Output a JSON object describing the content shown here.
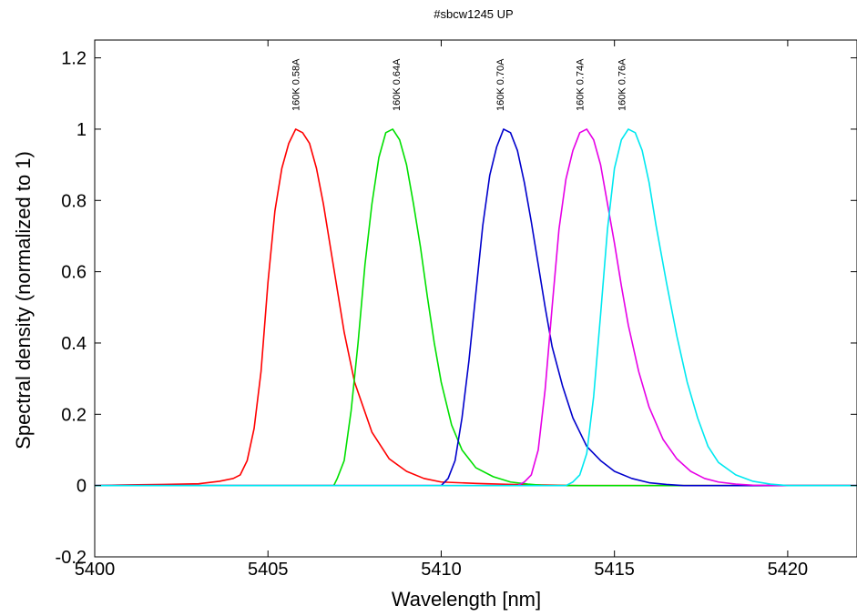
{
  "chart_data": {
    "type": "line",
    "title": "#sbcw1245 UP",
    "xlabel": "Wavelength [nm]",
    "ylabel": "Spectral density (normalized to 1)",
    "xlim": [
      5400,
      5422
    ],
    "ylim": [
      -0.2,
      1.25
    ],
    "xticks": [
      5400,
      5405,
      5410,
      5415,
      5420
    ],
    "xtick_labels": [
      "5400",
      "5405",
      "5410",
      "5415",
      "5420"
    ],
    "yticks": [
      -0.2,
      0,
      0.2,
      0.4,
      0.6,
      0.8,
      1,
      1.2
    ],
    "ytick_labels": [
      "-0.2",
      "0",
      "0.2",
      "0.4",
      "0.6",
      "0.8",
      "1",
      "1.2"
    ],
    "grid": false,
    "legend": "none",
    "series": [
      {
        "name": "160K 0.58A",
        "color": "#ff0000",
        "x": [
          5400,
          5401,
          5402,
          5403,
          5403.6,
          5404.0,
          5404.2,
          5404.4,
          5404.6,
          5404.8,
          5405.0,
          5405.2,
          5405.4,
          5405.6,
          5405.8,
          5406.0,
          5406.2,
          5406.4,
          5406.6,
          5406.8,
          5407.0,
          5407.2,
          5407.5,
          5408.0,
          5408.5,
          5409.0,
          5409.5,
          5410.0,
          5411.0,
          5412.0,
          5414.0,
          5417.0,
          5422.0
        ],
        "y": [
          0.0,
          0.002,
          0.003,
          0.005,
          0.012,
          0.02,
          0.03,
          0.07,
          0.16,
          0.32,
          0.57,
          0.77,
          0.89,
          0.96,
          1.0,
          0.99,
          0.96,
          0.89,
          0.79,
          0.67,
          0.55,
          0.43,
          0.29,
          0.15,
          0.075,
          0.04,
          0.02,
          0.01,
          0.006,
          0.003,
          0.0,
          0.0,
          0.0
        ]
      },
      {
        "name": "160K 0.64A",
        "color": "#00e000",
        "x": [
          5400,
          5406.9,
          5407.0,
          5407.2,
          5407.4,
          5407.6,
          5407.8,
          5408.0,
          5408.2,
          5408.4,
          5408.6,
          5408.8,
          5409.0,
          5409.2,
          5409.4,
          5409.6,
          5409.8,
          5410.0,
          5410.3,
          5410.6,
          5411.0,
          5411.5,
          5412.0,
          5412.5,
          5413.0,
          5416.0,
          5422.0
        ],
        "y": [
          0.0,
          0.0,
          0.02,
          0.07,
          0.21,
          0.4,
          0.62,
          0.79,
          0.92,
          0.99,
          1.0,
          0.97,
          0.9,
          0.79,
          0.67,
          0.53,
          0.4,
          0.29,
          0.17,
          0.1,
          0.05,
          0.025,
          0.01,
          0.004,
          0.0,
          0.0,
          0.0
        ]
      },
      {
        "name": "160K 0.70A",
        "color": "#0000cc",
        "x": [
          5400,
          5410.0,
          5410.2,
          5410.4,
          5410.6,
          5410.8,
          5411.0,
          5411.2,
          5411.4,
          5411.6,
          5411.8,
          5412.0,
          5412.2,
          5412.4,
          5412.6,
          5412.8,
          5413.0,
          5413.2,
          5413.5,
          5413.8,
          5414.2,
          5414.6,
          5415.0,
          5415.5,
          5416.0,
          5416.5,
          5417.0,
          5418.0,
          5422.0
        ],
        "y": [
          0.0,
          0.0,
          0.02,
          0.07,
          0.19,
          0.35,
          0.54,
          0.73,
          0.87,
          0.95,
          1.0,
          0.99,
          0.94,
          0.85,
          0.74,
          0.62,
          0.5,
          0.39,
          0.28,
          0.19,
          0.11,
          0.07,
          0.04,
          0.02,
          0.008,
          0.003,
          0.0,
          0.0,
          0.0
        ]
      },
      {
        "name": "160K 0.74A",
        "color": "#e600e6",
        "x": [
          5400,
          5412.2,
          5412.4,
          5412.6,
          5412.8,
          5413.0,
          5413.2,
          5413.4,
          5413.6,
          5413.8,
          5414.0,
          5414.2,
          5414.4,
          5414.6,
          5414.8,
          5415.0,
          5415.2,
          5415.4,
          5415.7,
          5416.0,
          5416.4,
          5416.8,
          5417.2,
          5417.6,
          5418.0,
          5418.5,
          5419.0,
          5420.0,
          5422.0
        ],
        "y": [
          0.0,
          0.0,
          0.01,
          0.03,
          0.1,
          0.27,
          0.5,
          0.72,
          0.86,
          0.94,
          0.99,
          1.0,
          0.97,
          0.9,
          0.79,
          0.68,
          0.56,
          0.45,
          0.32,
          0.22,
          0.13,
          0.075,
          0.04,
          0.02,
          0.01,
          0.004,
          0.001,
          0.0,
          0.0
        ]
      },
      {
        "name": "160K 0.76A",
        "color": "#00e8f0",
        "x": [
          5400,
          5413.6,
          5413.8,
          5414.0,
          5414.2,
          5414.4,
          5414.6,
          5414.8,
          5415.0,
          5415.2,
          5415.4,
          5415.6,
          5415.8,
          5416.0,
          5416.2,
          5416.5,
          5416.8,
          5417.1,
          5417.4,
          5417.7,
          5418.0,
          5418.5,
          5419.0,
          5419.5,
          5420.0,
          5421.0,
          5422.0
        ],
        "y": [
          0.0,
          0.0,
          0.01,
          0.03,
          0.09,
          0.25,
          0.48,
          0.72,
          0.89,
          0.97,
          1.0,
          0.99,
          0.94,
          0.85,
          0.73,
          0.57,
          0.42,
          0.29,
          0.19,
          0.11,
          0.065,
          0.03,
          0.012,
          0.004,
          0.0,
          0.0,
          0.0
        ]
      }
    ],
    "annotations": [
      {
        "text": "160K 0.58A",
        "x": 5405.8
      },
      {
        "text": "160K 0.64A",
        "x": 5408.7
      },
      {
        "text": "160K 0.70A",
        "x": 5411.7
      },
      {
        "text": "160K 0.74A",
        "x": 5414.0
      },
      {
        "text": "160K 0.76A",
        "x": 5415.2
      }
    ]
  }
}
